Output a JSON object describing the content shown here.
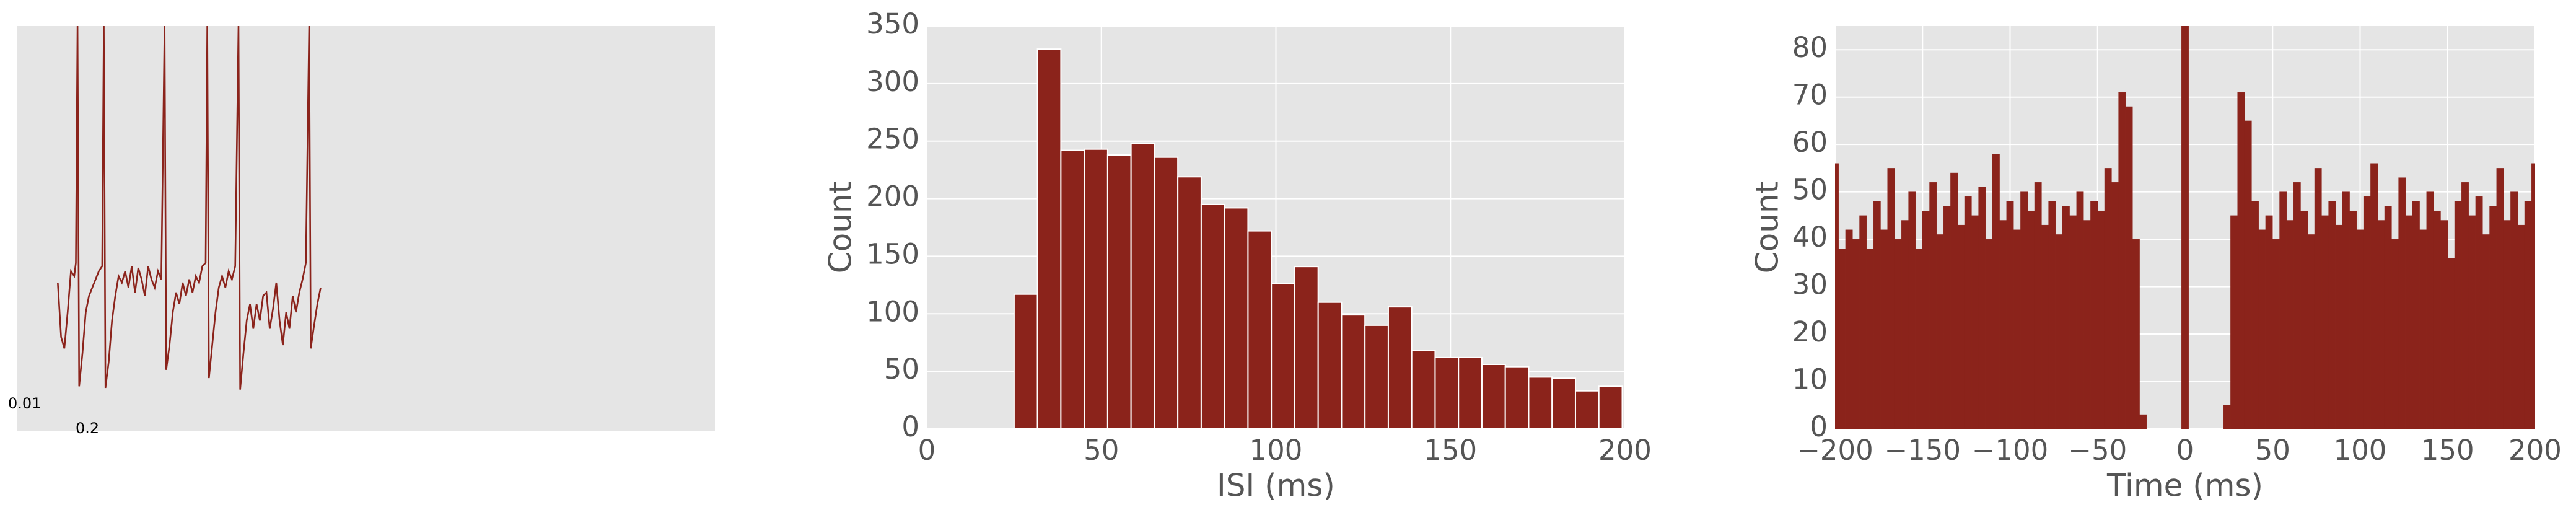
{
  "chart_data": [
    {
      "type": "line",
      "color": "#8b231b",
      "grid": false,
      "xlim": [
        0,
        425
      ],
      "ylim": [
        0,
        246
      ],
      "x": [
        25,
        27,
        29,
        31,
        33,
        35,
        36,
        37,
        38,
        40,
        42,
        44,
        46,
        48,
        50,
        52,
        53,
        54,
        56,
        58,
        60,
        62,
        64,
        66,
        68,
        70,
        72,
        74,
        76,
        78,
        80,
        82,
        84,
        86,
        88,
        90,
        91,
        93,
        95,
        97,
        99,
        101,
        103,
        105,
        107,
        109,
        111,
        113,
        115,
        116,
        117,
        119,
        121,
        123,
        125,
        127,
        129,
        131,
        133,
        135,
        136,
        138,
        140,
        142,
        144,
        146,
        148,
        150,
        152,
        154,
        156,
        158,
        160,
        162,
        164,
        166,
        168,
        170,
        172,
        174,
        176,
        178,
        179,
        181,
        183,
        185
      ],
      "values": [
        90,
        57,
        50,
        72,
        97,
        94,
        102,
        246,
        27,
        47,
        72,
        82,
        87,
        92,
        97,
        100,
        246,
        26,
        42,
        67,
        82,
        94,
        90,
        97,
        87,
        100,
        84,
        99,
        92,
        82,
        100,
        92,
        87,
        97,
        92,
        246,
        37,
        52,
        72,
        84,
        77,
        90,
        82,
        92,
        84,
        94,
        90,
        100,
        102,
        246,
        32,
        52,
        72,
        87,
        94,
        87,
        97,
        92,
        100,
        246,
        25,
        47,
        67,
        77,
        62,
        77,
        67,
        82,
        84,
        62,
        74,
        90,
        67,
        52,
        72,
        62,
        82,
        72,
        84,
        92,
        102,
        246,
        50,
        64,
        77,
        87
      ],
      "scale_labels": [
        "0.01",
        "0.2"
      ]
    },
    {
      "type": "histogram",
      "color": "#8b231b",
      "edgecolor": "#ffffff",
      "grid": true,
      "xlabel": "ISI (ms)",
      "ylabel": "Count",
      "xlim": [
        0,
        200
      ],
      "ylim": [
        0,
        350
      ],
      "xticks": [
        0,
        50,
        100,
        150,
        200
      ],
      "yticks": [
        0,
        50,
        100,
        150,
        200,
        250,
        300,
        350
      ],
      "bins": [
        25,
        31.7,
        38.4,
        45.1,
        51.8,
        58.5,
        65.2,
        71.9,
        78.6,
        85.3,
        92,
        98.7,
        105.4,
        112.1,
        118.8,
        125.5,
        132.2,
        138.9,
        145.6,
        152.3,
        159,
        165.7,
        172.4,
        179.1,
        185.8,
        192.5,
        199.2
      ],
      "values": [
        117,
        330,
        242,
        243,
        238,
        248,
        236,
        219,
        195,
        192,
        172,
        126,
        141,
        110,
        99,
        90,
        106,
        68,
        62,
        62,
        56,
        54,
        45,
        44,
        33,
        37
      ]
    },
    {
      "type": "histogram",
      "color": "#8b231b",
      "grid": true,
      "xlabel": "Time (ms)",
      "ylabel": "Count",
      "xlim": [
        -200,
        200
      ],
      "ylim": [
        0,
        85
      ],
      "xticks": [
        {
          "value": -200,
          "label": "−200"
        },
        {
          "value": -150,
          "label": "−150"
        },
        {
          "value": -100,
          "label": "−100"
        },
        {
          "value": -50,
          "label": "−50"
        },
        0,
        50,
        100,
        150,
        200
      ],
      "yticks": [
        0,
        10,
        20,
        30,
        40,
        50,
        60,
        70,
        80
      ],
      "bins": [
        -202,
        -198,
        -194,
        -190,
        -186,
        -182,
        -178,
        -174,
        -170,
        -166,
        -162,
        -158,
        -154,
        -150,
        -146,
        -142,
        -138,
        -134,
        -130,
        -126,
        -122,
        -118,
        -114,
        -110,
        -106,
        -102,
        -98,
        -94,
        -90,
        -86,
        -82,
        -78,
        -74,
        -70,
        -66,
        -62,
        -58,
        -54,
        -50,
        -46,
        -42,
        -38,
        -34,
        -30,
        -26,
        -22,
        -18,
        -14,
        -10,
        -6,
        -2,
        2,
        6,
        10,
        14,
        18,
        22,
        26,
        30,
        34,
        38,
        42,
        46,
        50,
        54,
        58,
        62,
        66,
        70,
        74,
        78,
        82,
        86,
        90,
        94,
        98,
        102,
        106,
        110,
        114,
        118,
        122,
        126,
        130,
        134,
        138,
        142,
        146,
        150,
        154,
        158,
        162,
        166,
        170,
        174,
        178,
        182,
        186,
        190,
        194,
        198,
        202
      ],
      "values": [
        56,
        38,
        42,
        40,
        45,
        38,
        48,
        42,
        55,
        40,
        44,
        50,
        38,
        46,
        52,
        41,
        47,
        54,
        43,
        49,
        45,
        51,
        40,
        58,
        44,
        48,
        42,
        50,
        46,
        52,
        43,
        48,
        41,
        47,
        45,
        50,
        44,
        48,
        46,
        55,
        52,
        71,
        68,
        40,
        3,
        0,
        0,
        0,
        0,
        0,
        85,
        0,
        0,
        0,
        0,
        0,
        5,
        45,
        71,
        65,
        48,
        42,
        45,
        40,
        50,
        44,
        52,
        46,
        41,
        55,
        45,
        48,
        43,
        50,
        46,
        42,
        49,
        56,
        44,
        47,
        40,
        53,
        45,
        48,
        42,
        50,
        46,
        44,
        36,
        48,
        52,
        45,
        49,
        41,
        47,
        55,
        44,
        50,
        43,
        48,
        56
      ]
    }
  ]
}
